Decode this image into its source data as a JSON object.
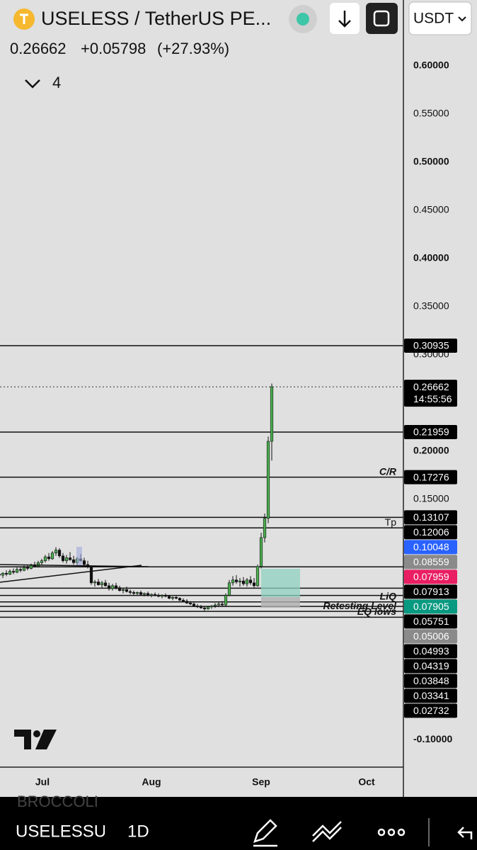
{
  "header": {
    "symbol": "USELESS / TetherUS PE...",
    "price": "0.26662",
    "change": "+0.05798",
    "change_pct": "(+27.93%)",
    "indicators": "4",
    "currency": "USDT"
  },
  "chart_data": {
    "type": "candlestick",
    "up_color": "#4caf50",
    "down_color": "#111111",
    "ylim": [
      -0.1284,
      0.6684
    ],
    "yticks": [
      {
        "value": 0.6,
        "label": "0.60000"
      },
      {
        "value": 0.55,
        "label": "0.55000"
      },
      {
        "value": 0.5,
        "label": "0.50000"
      },
      {
        "value": 0.45,
        "label": "0.45000"
      },
      {
        "value": 0.4,
        "label": "0.40000"
      },
      {
        "value": 0.35,
        "label": "0.35000"
      },
      {
        "value": 0.3,
        "label": "0.30000"
      },
      {
        "value": 0.2,
        "label": "0.20000"
      },
      {
        "value": 0.15,
        "label": "0.15000"
      },
      {
        "value": -0.1,
        "label": "-0.10000"
      }
    ],
    "x_labels": [
      "Jul",
      "Aug",
      "Sep",
      "Oct"
    ],
    "candles": [
      [
        0.072,
        0.075,
        0.069,
        0.071
      ],
      [
        0.071,
        0.074,
        0.068,
        0.073
      ],
      [
        0.073,
        0.076,
        0.07,
        0.072
      ],
      [
        0.072,
        0.077,
        0.071,
        0.075
      ],
      [
        0.075,
        0.078,
        0.072,
        0.074
      ],
      [
        0.074,
        0.079,
        0.073,
        0.077
      ],
      [
        0.077,
        0.08,
        0.074,
        0.076
      ],
      [
        0.076,
        0.081,
        0.075,
        0.079
      ],
      [
        0.079,
        0.082,
        0.076,
        0.078
      ],
      [
        0.078,
        0.083,
        0.077,
        0.081
      ],
      [
        0.081,
        0.085,
        0.079,
        0.08
      ],
      [
        0.08,
        0.086,
        0.079,
        0.084
      ],
      [
        0.084,
        0.088,
        0.081,
        0.086
      ],
      [
        0.086,
        0.092,
        0.084,
        0.09
      ],
      [
        0.09,
        0.094,
        0.086,
        0.088
      ],
      [
        0.088,
        0.096,
        0.087,
        0.094
      ],
      [
        0.094,
        0.1,
        0.091,
        0.097
      ],
      [
        0.097,
        0.099,
        0.089,
        0.091
      ],
      [
        0.091,
        0.094,
        0.084,
        0.086
      ],
      [
        0.086,
        0.092,
        0.083,
        0.089
      ],
      [
        0.089,
        0.095,
        0.086,
        0.087
      ],
      [
        0.087,
        0.091,
        0.082,
        0.084
      ],
      [
        0.084,
        0.09,
        0.081,
        0.088
      ],
      [
        0.088,
        0.093,
        0.085,
        0.086
      ],
      [
        0.086,
        0.089,
        0.08,
        0.082
      ],
      [
        0.082,
        0.086,
        0.078,
        0.08
      ],
      [
        0.08,
        0.081,
        0.061,
        0.063
      ],
      [
        0.063,
        0.066,
        0.059,
        0.064
      ],
      [
        0.064,
        0.067,
        0.06,
        0.061
      ],
      [
        0.061,
        0.065,
        0.058,
        0.063
      ],
      [
        0.063,
        0.066,
        0.059,
        0.06
      ],
      [
        0.06,
        0.063,
        0.055,
        0.057
      ],
      [
        0.057,
        0.062,
        0.055,
        0.06
      ],
      [
        0.06,
        0.063,
        0.056,
        0.058
      ],
      [
        0.058,
        0.06,
        0.054,
        0.055
      ],
      [
        0.055,
        0.058,
        0.052,
        0.056
      ],
      [
        0.056,
        0.059,
        0.053,
        0.054
      ],
      [
        0.054,
        0.056,
        0.051,
        0.053
      ],
      [
        0.053,
        0.055,
        0.05,
        0.052
      ],
      [
        0.052,
        0.054,
        0.05,
        0.053
      ],
      [
        0.053,
        0.055,
        0.05,
        0.051
      ],
      [
        0.051,
        0.053,
        0.049,
        0.052
      ],
      [
        0.052,
        0.054,
        0.049,
        0.05
      ],
      [
        0.05,
        0.052,
        0.048,
        0.051
      ],
      [
        0.051,
        0.053,
        0.049,
        0.05
      ],
      [
        0.05,
        0.052,
        0.048,
        0.049
      ],
      [
        0.049,
        0.051,
        0.047,
        0.05
      ],
      [
        0.05,
        0.052,
        0.048,
        0.049
      ],
      [
        0.049,
        0.05,
        0.046,
        0.047
      ],
      [
        0.047,
        0.049,
        0.045,
        0.048
      ],
      [
        0.048,
        0.05,
        0.046,
        0.047
      ],
      [
        0.047,
        0.048,
        0.044,
        0.045
      ],
      [
        0.045,
        0.047,
        0.043,
        0.044
      ],
      [
        0.044,
        0.046,
        0.041,
        0.042
      ],
      [
        0.042,
        0.044,
        0.04,
        0.041
      ],
      [
        0.041,
        0.043,
        0.038,
        0.039
      ],
      [
        0.039,
        0.041,
        0.037,
        0.038
      ],
      [
        0.038,
        0.04,
        0.036,
        0.037
      ],
      [
        0.037,
        0.039,
        0.034,
        0.036
      ],
      [
        0.036,
        0.039,
        0.035,
        0.038
      ],
      [
        0.038,
        0.04,
        0.036,
        0.039
      ],
      [
        0.039,
        0.042,
        0.037,
        0.04
      ],
      [
        0.04,
        0.043,
        0.038,
        0.041
      ],
      [
        0.041,
        0.044,
        0.039,
        0.04
      ],
      [
        0.04,
        0.052,
        0.039,
        0.05
      ],
      [
        0.05,
        0.066,
        0.049,
        0.063
      ],
      [
        0.063,
        0.07,
        0.06,
        0.066
      ],
      [
        0.066,
        0.071,
        0.062,
        0.064
      ],
      [
        0.064,
        0.068,
        0.059,
        0.065
      ],
      [
        0.065,
        0.069,
        0.06,
        0.062
      ],
      [
        0.062,
        0.068,
        0.059,
        0.066
      ],
      [
        0.066,
        0.07,
        0.061,
        0.063
      ],
      [
        0.063,
        0.068,
        0.058,
        0.06
      ],
      [
        0.06,
        0.082,
        0.059,
        0.08
      ],
      [
        0.08,
        0.115,
        0.078,
        0.11
      ],
      [
        0.11,
        0.135,
        0.105,
        0.13
      ],
      [
        0.13,
        0.215,
        0.125,
        0.21
      ],
      [
        0.21,
        0.27,
        0.19,
        0.26662
      ]
    ],
    "last_price": 0.26662,
    "countdown": "14:55:56",
    "levels": [
      {
        "value": 0.30935
      },
      {
        "value": 0.21959
      },
      {
        "value": 0.17276,
        "label": "C/R"
      },
      {
        "value": 0.13107
      },
      {
        "value": 0.12006,
        "label": "Tp"
      },
      {
        "value": 0.07959
      },
      {
        "value": 0.05751
      },
      {
        "value": 0.04993
      },
      {
        "value": 0.04319,
        "label": "LiQ"
      },
      {
        "value": 0.03848
      },
      {
        "value": 0.03341,
        "label": "Retesting Level"
      },
      {
        "value": 0.02732,
        "label": "EQ lows"
      }
    ],
    "price_labels": [
      {
        "value": 0.30935,
        "color": "#000000"
      },
      {
        "value": 0.21959,
        "color": "#000000"
      },
      {
        "value": 0.17276,
        "color": "#000000"
      },
      {
        "value": 0.13107,
        "color": "#000000"
      },
      {
        "value": 0.12006,
        "color": "#000000"
      },
      {
        "value": 0.10048,
        "color": "#2962ff"
      },
      {
        "value": 0.08559,
        "color": "#8a8a8a"
      },
      {
        "value": 0.07959,
        "color": "#e91e63"
      },
      {
        "value": 0.07913,
        "color": "#000000"
      },
      {
        "value": 0.07905,
        "color": "#089981"
      },
      {
        "value": 0.05751,
        "color": "#000000"
      },
      {
        "value": 0.05006,
        "color": "#8a8a8a"
      },
      {
        "value": 0.04993,
        "color": "#000000"
      },
      {
        "value": 0.04319,
        "color": "#000000"
      },
      {
        "value": 0.03848,
        "color": "#000000"
      },
      {
        "value": 0.03341,
        "color": "#000000"
      },
      {
        "value": 0.02732,
        "color": "#000000"
      }
    ]
  },
  "footer": {
    "watermark": "BROCCOLI",
    "symbol": "USELESSU",
    "interval": "1D"
  }
}
